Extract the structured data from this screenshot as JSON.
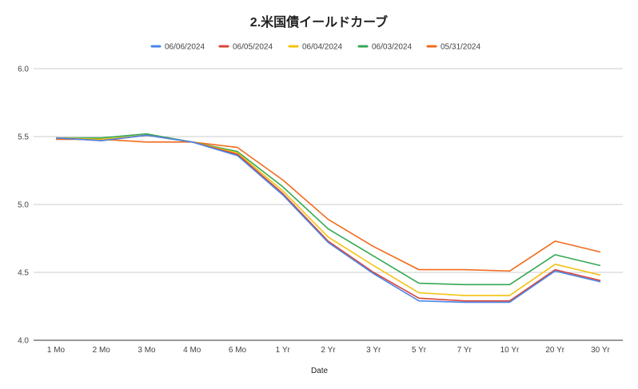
{
  "chart_data": {
    "type": "line",
    "title": "2.米国債イールドカーブ",
    "xlabel": "Date",
    "ylabel": "",
    "ylim": [
      4.0,
      6.0
    ],
    "yticks": [
      "4.0",
      "4.5",
      "5.0",
      "5.5",
      "6.0"
    ],
    "grid": true,
    "legend_position": "top",
    "categories": [
      "1 Mo",
      "2 Mo",
      "3 Mo",
      "4 Mo",
      "6 Mo",
      "1 Yr",
      "2 Yr",
      "3 Yr",
      "5 Yr",
      "7 Yr",
      "10 Yr",
      "20 Yr",
      "30 Yr"
    ],
    "series": [
      {
        "name": "05/31/2024",
        "color": "#f26b1d",
        "values": [
          5.48,
          5.48,
          5.46,
          5.46,
          5.42,
          5.18,
          4.89,
          4.69,
          4.52,
          4.52,
          4.51,
          4.73,
          4.65
        ]
      },
      {
        "name": "06/03/2024",
        "color": "#34a853",
        "values": [
          5.49,
          5.49,
          5.52,
          5.46,
          5.39,
          5.13,
          4.82,
          4.62,
          4.42,
          4.41,
          4.41,
          4.63,
          4.55
        ]
      },
      {
        "name": "06/04/2024",
        "color": "#f4c20d",
        "values": [
          5.49,
          5.48,
          5.51,
          5.46,
          5.38,
          5.1,
          4.76,
          4.55,
          4.35,
          4.33,
          4.33,
          4.56,
          4.48
        ]
      },
      {
        "name": "06/05/2024",
        "color": "#db4437",
        "values": [
          5.49,
          5.47,
          5.51,
          5.46,
          5.37,
          5.08,
          4.73,
          4.5,
          4.31,
          4.29,
          4.29,
          4.52,
          4.44
        ]
      },
      {
        "name": "06/06/2024",
        "color": "#4a86e8",
        "values": [
          5.49,
          5.47,
          5.51,
          5.46,
          5.36,
          5.07,
          4.72,
          4.49,
          4.29,
          4.28,
          4.28,
          4.51,
          4.43
        ]
      }
    ],
    "legend_order": [
      "06/06/2024",
      "06/05/2024",
      "06/04/2024",
      "06/03/2024",
      "05/31/2024"
    ]
  }
}
